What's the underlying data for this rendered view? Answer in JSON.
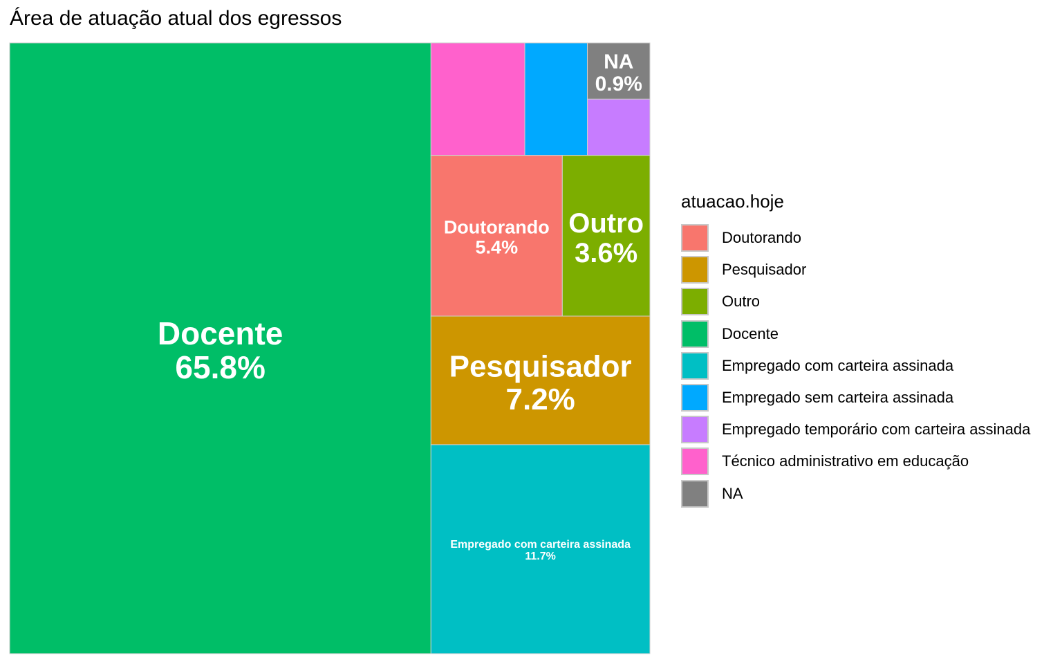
{
  "chart_data": {
    "type": "treemap",
    "title": "Área de atuação atual dos egressos",
    "legend": {
      "title": "atuacao.hoje",
      "position": "right",
      "entries": [
        {
          "name": "Doutorando",
          "color": "#F8766D"
        },
        {
          "name": "Pesquisador",
          "color": "#CD9600"
        },
        {
          "name": "Outro",
          "color": "#7CAE00"
        },
        {
          "name": "Docente",
          "color": "#00BE67"
        },
        {
          "name": "Empregado com carteira assinada",
          "color": "#00BFC4"
        },
        {
          "name": "Empregado sem carteira assinada",
          "color": "#00A9FF"
        },
        {
          "name": "Empregado temporário com carteira assinada",
          "color": "#C77CFF"
        },
        {
          "name": "Técnico administrativo em educação",
          "color": "#FF61CC"
        },
        {
          "name": "NA",
          "color": "#808080"
        }
      ]
    },
    "tiles": [
      {
        "category": "Docente",
        "value": 65.8,
        "label": "Docente",
        "pct_label": "65.8%",
        "color": "#00BE67"
      },
      {
        "category": "Empregado com carteira assinada",
        "value": 11.7,
        "label": "Empregado com carteira assinada",
        "pct_label": "11.7%",
        "color": "#00BFC4"
      },
      {
        "category": "Pesquisador",
        "value": 7.2,
        "label": "Pesquisador",
        "pct_label": "7.2%",
        "color": "#CD9600"
      },
      {
        "category": "Doutorando",
        "value": 5.4,
        "label": "Doutorando",
        "pct_label": "5.4%",
        "color": "#F8766D"
      },
      {
        "category": "Outro",
        "value": 3.6,
        "label": "Outro",
        "pct_label": "3.6%",
        "color": "#7CAE00"
      },
      {
        "category": "Técnico administrativo em educação",
        "value": 2.7,
        "label": "",
        "pct_label": "",
        "color": "#FF61CC"
      },
      {
        "category": "Empregado sem carteira assinada",
        "value": 1.8,
        "label": "",
        "pct_label": "",
        "color": "#00A9FF"
      },
      {
        "category": "NA",
        "value": 0.9,
        "label": "NA",
        "pct_label": "0.9%",
        "color": "#808080"
      },
      {
        "category": "Empregado temporário com carteira assinada",
        "value": 0.9,
        "label": "",
        "pct_label": "",
        "color": "#C77CFF"
      }
    ]
  }
}
